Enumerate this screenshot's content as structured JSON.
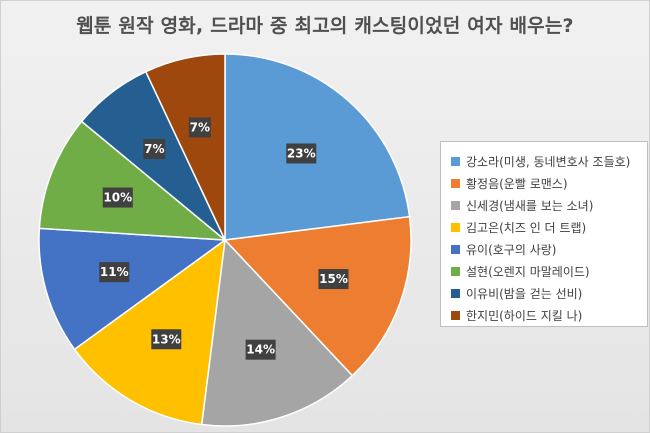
{
  "chart_data": {
    "type": "pie",
    "title": "웹툰 원작 영화, 드라마 중 최고의 캐스팅이었던 여자 배우는?",
    "categories": [
      "강소라(미생, 동네변호사 조들호)",
      "황정음(운빨 로맨스)",
      "신세경(냄새를 보는 소녀)",
      "김고은(치즈 인 더 트랩)",
      "유이(호구의 사랑)",
      "설현(오렌지 마말레이드)",
      "이유비(밤을 걷는 선비)",
      "한지민(하이드 지킬 나)"
    ],
    "values": [
      23,
      15,
      14,
      13,
      11,
      10,
      7,
      7
    ],
    "value_labels": [
      "23%",
      "15%",
      "14%",
      "13%",
      "11%",
      "10%",
      "7%",
      "7%"
    ],
    "colors": [
      "#5b9bd5",
      "#ed7d31",
      "#a5a5a5",
      "#ffc000",
      "#4472c4",
      "#70ad47",
      "#255e91",
      "#9e480e"
    ],
    "legend_position": "right"
  }
}
